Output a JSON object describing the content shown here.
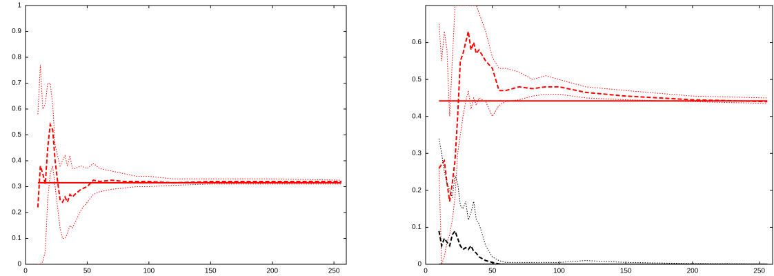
{
  "chart_data": [
    {
      "type": "line",
      "x": [
        10,
        12,
        14,
        16,
        18,
        20,
        22,
        24,
        26,
        28,
        30,
        32,
        34,
        36,
        38,
        40,
        45,
        50,
        55,
        60,
        70,
        80,
        90,
        100,
        120,
        150,
        200,
        256
      ],
      "xlim": [
        0,
        260
      ],
      "xticks": [
        0,
        50,
        100,
        150,
        200,
        250
      ],
      "ylim": [
        0,
        1
      ],
      "yticks": [
        0,
        0.1,
        0.2,
        0.3,
        0.4,
        0.5,
        0.6,
        0.7,
        0.8,
        0.9,
        1
      ],
      "series": [
        {
          "color": "#ff0000",
          "style": "solid",
          "values": [
            0.315,
            0.315,
            0.315,
            0.315,
            0.315,
            0.315,
            0.315,
            0.315,
            0.315,
            0.315,
            0.315,
            0.315,
            0.315,
            0.315,
            0.315,
            0.315,
            0.315,
            0.315,
            0.315,
            0.315,
            0.315,
            0.315,
            0.315,
            0.315,
            0.315,
            0.315,
            0.315,
            0.315
          ]
        },
        {
          "color": "#ff0000",
          "style": "dashed",
          "values": [
            0.22,
            0.38,
            0.35,
            0.31,
            0.45,
            0.54,
            0.52,
            0.4,
            0.32,
            0.25,
            0.24,
            0.26,
            0.24,
            0.27,
            0.26,
            0.27,
            0.29,
            0.3,
            0.325,
            0.32,
            0.325,
            0.32,
            0.32,
            0.32,
            0.315,
            0.32,
            0.32,
            0.32
          ]
        },
        {
          "color": "#ff0000",
          "style": "dotted",
          "values": [
            0.58,
            0.77,
            0.6,
            0.62,
            0.7,
            0.7,
            0.62,
            0.46,
            0.42,
            0.38,
            0.4,
            0.42,
            0.38,
            0.42,
            0.37,
            0.37,
            0.38,
            0.37,
            0.39,
            0.37,
            0.36,
            0.35,
            0.34,
            0.34,
            0.33,
            0.33,
            0.33,
            0.325
          ]
        },
        {
          "color": "#ff0000",
          "style": "dotted",
          "values": [
            0,
            0,
            0.01,
            0.05,
            0.25,
            0.35,
            0.38,
            0.3,
            0.22,
            0.14,
            0.1,
            0.1,
            0.12,
            0.15,
            0.14,
            0.16,
            0.21,
            0.24,
            0.27,
            0.28,
            0.29,
            0.295,
            0.3,
            0.3,
            0.305,
            0.31,
            0.31,
            0.31
          ]
        }
      ]
    },
    {
      "type": "line",
      "x": [
        10,
        12,
        14,
        16,
        18,
        20,
        22,
        24,
        26,
        28,
        30,
        32,
        34,
        36,
        38,
        40,
        45,
        50,
        55,
        60,
        70,
        80,
        90,
        100,
        120,
        150,
        200,
        256
      ],
      "xlim": [
        0,
        260
      ],
      "xticks": [
        0,
        50,
        100,
        150,
        200,
        250
      ],
      "ylim": [
        0,
        0.7
      ],
      "yticks": [
        0,
        0.1,
        0.2,
        0.3,
        0.4,
        0.5,
        0.6
      ],
      "series": [
        {
          "color": "#ff0000",
          "style": "solid",
          "values": [
            0.442,
            0.442,
            0.442,
            0.442,
            0.442,
            0.442,
            0.442,
            0.442,
            0.442,
            0.442,
            0.442,
            0.442,
            0.442,
            0.442,
            0.442,
            0.442,
            0.442,
            0.442,
            0.442,
            0.442,
            0.442,
            0.442,
            0.442,
            0.442,
            0.442,
            0.442,
            0.442,
            0.442
          ]
        },
        {
          "color": "#ff0000",
          "style": "dashed",
          "values": [
            0.26,
            0.27,
            0.28,
            0.22,
            0.17,
            0.22,
            0.28,
            0.4,
            0.55,
            0.57,
            0.6,
            0.63,
            0.58,
            0.6,
            0.57,
            0.58,
            0.55,
            0.53,
            0.47,
            0.47,
            0.48,
            0.475,
            0.48,
            0.48,
            0.465,
            0.455,
            0.445,
            0.44
          ]
        },
        {
          "color": "#ff0000",
          "style": "dotted",
          "values": [
            0.65,
            0.55,
            0.63,
            0.58,
            0.4,
            0.55,
            0.7,
            0.7,
            0.7,
            0.7,
            0.7,
            0.7,
            0.7,
            0.7,
            0.7,
            0.68,
            0.63,
            0.56,
            0.53,
            0.53,
            0.52,
            0.5,
            0.51,
            0.5,
            0.48,
            0.47,
            0.455,
            0.45
          ]
        },
        {
          "color": "#ff0000",
          "style": "dotted",
          "values": [
            0.26,
            0,
            0.02,
            0.06,
            0.08,
            0.12,
            0.18,
            0.3,
            0.35,
            0.4,
            0.44,
            0.47,
            0.42,
            0.45,
            0.43,
            0.45,
            0.44,
            0.4,
            0.43,
            0.44,
            0.445,
            0.455,
            0.46,
            0.46,
            0.45,
            0.445,
            0.44,
            0.435
          ]
        },
        {
          "color": "#000000",
          "style": "solid",
          "values": [
            0,
            0,
            0,
            0,
            0,
            0,
            0,
            0,
            0,
            0,
            0,
            0,
            0,
            0,
            0,
            0,
            0,
            0,
            0,
            0,
            0,
            0,
            0,
            0,
            0,
            0,
            0,
            0
          ]
        },
        {
          "color": "#000000",
          "style": "dashed",
          "values": [
            0.09,
            0.05,
            0.07,
            0.06,
            0.05,
            0.08,
            0.09,
            0.07,
            0.05,
            0.04,
            0.045,
            0.04,
            0.05,
            0.035,
            0.03,
            0.02,
            0.01,
            0.005,
            0.001,
            0,
            0,
            0,
            0,
            0,
            0,
            0,
            0,
            0
          ]
        },
        {
          "color": "#000000",
          "style": "dotted",
          "values": [
            0.34,
            0.3,
            0.25,
            0.22,
            0.2,
            0.18,
            0.24,
            0.22,
            0.16,
            0.15,
            0.17,
            0.12,
            0.14,
            0.17,
            0.12,
            0.11,
            0.05,
            0.02,
            0.01,
            0.005,
            0.005,
            0.005,
            0.005,
            0.005,
            0.01,
            0.005,
            0.002,
            0.001
          ]
        }
      ]
    }
  ]
}
